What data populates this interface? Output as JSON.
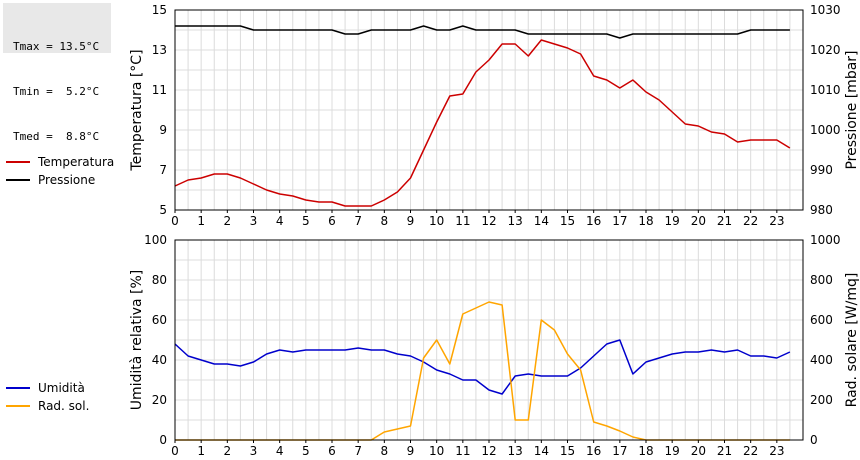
{
  "stats": {
    "tmax": "Tmax = 13.5°C",
    "tmin": "Tmin =  5.2°C",
    "tmed": "Tmed =  8.8°C"
  },
  "colors": {
    "temperature": "#cc0000",
    "pressure": "#000000",
    "humidity": "#0000cc",
    "radiation": "#ffa500",
    "grid": "#dcdcdc"
  },
  "chart_data": [
    {
      "type": "line",
      "x_ticks": [
        "0",
        "1",
        "2",
        "3",
        "4",
        "5",
        "6",
        "7",
        "8",
        "9",
        "10",
        "11",
        "12",
        "13",
        "14",
        "15",
        "16",
        "17",
        "18",
        "19",
        "20",
        "21",
        "22",
        "23"
      ],
      "xlim": [
        0,
        24
      ],
      "ylabel_left": "Temperatura [°C]",
      "ylabel_right": "Pressione [mbar]",
      "ylim_left": [
        5,
        15
      ],
      "ylim_right": [
        980,
        1030
      ],
      "yticks_left": [
        "5",
        "7",
        "9",
        "11",
        "13",
        "15"
      ],
      "yticks_right": [
        "980",
        "990",
        "1000",
        "1010",
        "1020",
        "1030"
      ],
      "grid": true,
      "legend": [
        {
          "name": "Temperatura",
          "color": "#cc0000"
        },
        {
          "name": "Pressione",
          "color": "#000000"
        }
      ],
      "series": [
        {
          "name": "Temperatura",
          "axis": "left",
          "color": "#cc0000",
          "x": [
            0,
            0.5,
            1,
            1.5,
            2,
            2.5,
            3,
            3.5,
            4,
            4.5,
            5,
            5.5,
            6,
            6.5,
            7,
            7.5,
            8,
            8.5,
            9,
            9.5,
            10,
            10.5,
            11,
            11.5,
            12,
            12.5,
            13,
            13.5,
            14,
            14.5,
            15,
            15.5,
            16,
            16.5,
            17,
            17.5,
            18,
            18.5,
            19,
            19.5,
            20,
            20.5,
            21,
            21.5,
            22,
            22.5,
            23,
            23.5
          ],
          "values": [
            6.2,
            6.5,
            6.6,
            6.8,
            6.8,
            6.6,
            6.3,
            6.0,
            5.8,
            5.7,
            5.5,
            5.4,
            5.4,
            5.2,
            5.2,
            5.2,
            5.5,
            5.9,
            6.6,
            8.0,
            9.4,
            10.7,
            10.8,
            11.9,
            12.5,
            13.3,
            13.3,
            12.7,
            13.5,
            13.3,
            13.1,
            12.8,
            11.7,
            11.5,
            11.1,
            11.5,
            10.9,
            10.5,
            9.9,
            9.3,
            9.2,
            8.9,
            8.8,
            8.4,
            8.5,
            8.5,
            8.5,
            8.1
          ]
        },
        {
          "name": "Pressione",
          "axis": "right",
          "color": "#000000",
          "x": [
            0,
            0.5,
            1,
            1.5,
            2,
            2.5,
            3,
            3.5,
            4,
            4.5,
            5,
            5.5,
            6,
            6.5,
            7,
            7.5,
            8,
            8.5,
            9,
            9.5,
            10,
            10.5,
            11,
            11.5,
            12,
            12.5,
            13,
            13.5,
            14,
            14.5,
            15,
            15.5,
            16,
            16.5,
            17,
            17.5,
            18,
            18.5,
            19,
            19.5,
            20,
            20.5,
            21,
            21.5,
            22,
            22.5,
            23,
            23.5
          ],
          "values": [
            1026,
            1026,
            1026,
            1026,
            1026,
            1026,
            1025,
            1025,
            1025,
            1025,
            1025,
            1025,
            1025,
            1024,
            1024,
            1025,
            1025,
            1025,
            1025,
            1026,
            1025,
            1025,
            1026,
            1025,
            1025,
            1025,
            1025,
            1024,
            1024,
            1024,
            1024,
            1024,
            1024,
            1024,
            1023,
            1024,
            1024,
            1024,
            1024,
            1024,
            1024,
            1024,
            1024,
            1024,
            1025,
            1025,
            1025,
            1025
          ]
        }
      ]
    },
    {
      "type": "line",
      "x_ticks": [
        "0",
        "1",
        "2",
        "3",
        "4",
        "5",
        "6",
        "7",
        "8",
        "9",
        "10",
        "11",
        "12",
        "13",
        "14",
        "15",
        "16",
        "17",
        "18",
        "19",
        "20",
        "21",
        "22",
        "23"
      ],
      "xlim": [
        0,
        24
      ],
      "ylabel_left": "Umidità relativa [%]",
      "ylabel_right": "Rad. solare [W/mq]",
      "ylim_left": [
        0,
        100
      ],
      "ylim_right": [
        0,
        1000
      ],
      "yticks_left": [
        "0",
        "20",
        "40",
        "60",
        "80",
        "100"
      ],
      "yticks_right": [
        "0",
        "200",
        "400",
        "600",
        "800",
        "1000"
      ],
      "grid": true,
      "legend": [
        {
          "name": "Umidità",
          "color": "#0000cc"
        },
        {
          "name": "Rad. sol.",
          "color": "#ffa500"
        }
      ],
      "series": [
        {
          "name": "Umidità",
          "axis": "left",
          "color": "#0000cc",
          "x": [
            0,
            0.5,
            1,
            1.5,
            2,
            2.5,
            3,
            3.5,
            4,
            4.5,
            5,
            5.5,
            6,
            6.5,
            7,
            7.5,
            8,
            8.5,
            9,
            9.5,
            10,
            10.5,
            11,
            11.5,
            12,
            12.5,
            13,
            13.5,
            14,
            14.5,
            15,
            15.5,
            16,
            16.5,
            17,
            17.5,
            18,
            18.5,
            19,
            19.5,
            20,
            20.5,
            21,
            21.5,
            22,
            22.5,
            23,
            23.5
          ],
          "values": [
            48,
            42,
            40,
            38,
            38,
            37,
            39,
            43,
            45,
            44,
            45,
            45,
            45,
            45,
            46,
            45,
            45,
            43,
            42,
            39,
            35,
            33,
            30,
            30,
            25,
            23,
            32,
            33,
            32,
            32,
            32,
            36,
            42,
            48,
            50,
            33,
            39,
            41,
            43,
            44,
            44,
            45,
            44,
            45,
            42,
            42,
            41,
            44
          ]
        },
        {
          "name": "Rad. sol.",
          "axis": "right",
          "color": "#ffa500",
          "x": [
            0,
            0.5,
            1,
            1.5,
            2,
            2.5,
            3,
            3.5,
            4,
            4.5,
            5,
            5.5,
            6,
            6.5,
            7,
            7.5,
            8,
            8.5,
            9,
            9.5,
            10,
            10.5,
            11,
            11.5,
            12,
            12.5,
            13,
            13.5,
            14,
            14.5,
            15,
            15.5,
            16,
            16.5,
            17,
            17.5,
            18,
            18.5,
            19,
            19.5,
            20,
            20.5,
            21,
            21.5,
            22,
            22.5,
            23,
            23.5
          ],
          "values": [
            0,
            0,
            0,
            0,
            0,
            0,
            0,
            0,
            0,
            0,
            0,
            0,
            0,
            0,
            0,
            0,
            40,
            55,
            70,
            410,
            500,
            380,
            630,
            660,
            690,
            675,
            100,
            100,
            600,
            550,
            430,
            350,
            90,
            70,
            45,
            15,
            0,
            0,
            0,
            0,
            0,
            0,
            0,
            0,
            0,
            0,
            0,
            0
          ]
        }
      ]
    }
  ]
}
